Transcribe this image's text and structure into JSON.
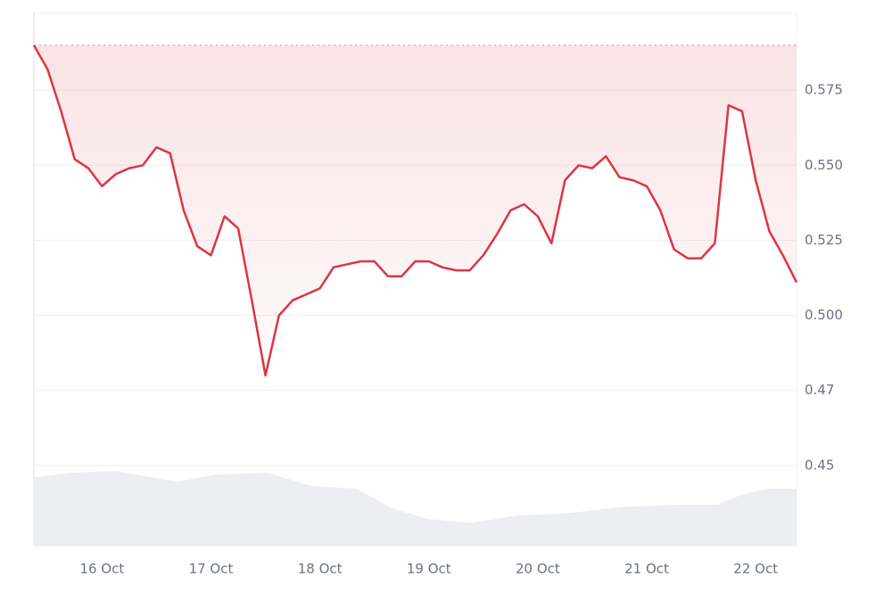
{
  "chart_data": {
    "type": "line",
    "categories": [
      null,
      null,
      null,
      null,
      null,
      "16 Oct",
      null,
      null,
      null,
      null,
      null,
      null,
      null,
      "17 Oct",
      null,
      null,
      null,
      null,
      null,
      null,
      null,
      "18 Oct",
      null,
      null,
      null,
      null,
      null,
      null,
      null,
      "19 Oct",
      null,
      null,
      null,
      null,
      null,
      null,
      null,
      "20 Oct",
      null,
      null,
      null,
      null,
      null,
      null,
      null,
      "21 Oct",
      null,
      null,
      null,
      null,
      null,
      null,
      null,
      "22 Oct",
      null,
      null,
      null
    ],
    "values": [
      0.59,
      0.582,
      0.568,
      0.552,
      0.549,
      0.543,
      0.547,
      0.549,
      0.55,
      0.556,
      0.554,
      0.535,
      0.523,
      0.52,
      0.533,
      0.529,
      0.505,
      0.48,
      0.5,
      0.505,
      0.507,
      0.509,
      0.516,
      0.517,
      0.518,
      0.518,
      0.513,
      0.513,
      0.518,
      0.518,
      0.516,
      0.515,
      0.515,
      0.52,
      0.527,
      0.535,
      0.537,
      0.533,
      0.524,
      0.545,
      0.55,
      0.549,
      0.553,
      0.546,
      0.545,
      0.543,
      0.535,
      0.522,
      0.519,
      0.519,
      0.524,
      0.57,
      0.568,
      0.545,
      0.528,
      0.52,
      0.511
    ],
    "color": "#dc3545",
    "reference_line": 0.59,
    "ylim": [
      0.4232,
      0.6006
    ],
    "yticks": [
      0.45,
      {
        "value": 0.475,
        "label": "0.47"
      },
      {
        "value": 0.5,
        "label": "0.500"
      },
      0.525,
      {
        "value": 0.55,
        "label": "0.550"
      },
      0.575
    ],
    "grid": true
  }
}
